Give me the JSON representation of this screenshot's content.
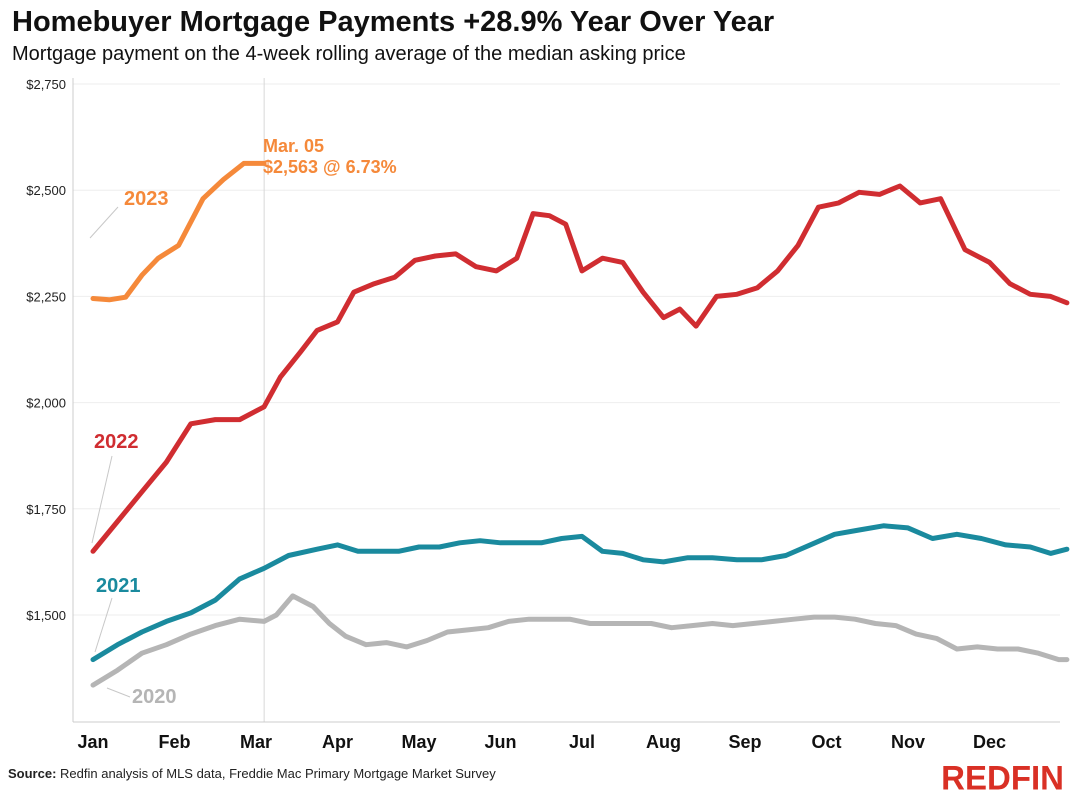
{
  "title": "Homebuyer Mortgage Payments +28.9% Year Over Year",
  "subtitle": "Mortgage payment on the 4-week rolling average of the median asking price",
  "source_label": "Source:",
  "source_text": " Redfin analysis of MLS data, Freddie Mac Primary Mortgage Market Survey",
  "logo": "REDFIN",
  "annotation": {
    "line1": "Mar. 05",
    "line2": "$2,563 @ 6.73%"
  },
  "colors": {
    "2023": "#f5893a",
    "2022": "#d02d31",
    "2021": "#1a8a9e",
    "2020": "#b5b5b5"
  },
  "chart_data": {
    "type": "line",
    "xlabel": "",
    "ylabel": "",
    "ylim": [
      1270,
      2750
    ],
    "xlim": [
      0,
      12.3
    ],
    "yticks": [
      1500,
      1750,
      2000,
      2250,
      2500,
      2750
    ],
    "ytick_labels": [
      "$1,500",
      "$1,750",
      "$2,000",
      "$2,250",
      "$2,500",
      "$2,750"
    ],
    "month_labels": [
      "Jan",
      "Feb",
      "Mar",
      "Apr",
      "May",
      "Jun",
      "Jul",
      "Aug",
      "Sep",
      "Oct",
      "Nov",
      "Dec"
    ],
    "reference_line_x": 2.1,
    "grid": "horizontal",
    "series": [
      {
        "name": "2023",
        "x": [
          0.0,
          0.2,
          0.4,
          0.6,
          0.8,
          1.05,
          1.35,
          1.6,
          1.85,
          2.1
        ],
        "y": [
          2245,
          2242,
          2248,
          2300,
          2340,
          2370,
          2480,
          2525,
          2563,
          2563
        ]
      },
      {
        "name": "2022",
        "x": [
          0.0,
          0.3,
          0.6,
          0.9,
          1.2,
          1.5,
          1.8,
          2.1,
          2.3,
          2.55,
          2.75,
          3.0,
          3.2,
          3.45,
          3.7,
          3.95,
          4.2,
          4.45,
          4.7,
          4.95,
          5.2,
          5.4,
          5.6,
          5.8,
          6.0,
          6.25,
          6.5,
          6.75,
          7.0,
          7.2,
          7.4,
          7.65,
          7.9,
          8.15,
          8.4,
          8.65,
          8.9,
          9.15,
          9.4,
          9.65,
          9.9,
          10.15,
          10.4,
          10.7,
          11.0,
          11.25,
          11.5,
          11.75,
          11.95
        ],
        "y": [
          1650,
          1720,
          1790,
          1860,
          1950,
          1960,
          1960,
          1990,
          2060,
          2120,
          2170,
          2190,
          2260,
          2280,
          2295,
          2335,
          2345,
          2350,
          2320,
          2310,
          2340,
          2445,
          2440,
          2420,
          2310,
          2340,
          2330,
          2260,
          2200,
          2220,
          2180,
          2250,
          2255,
          2270,
          2310,
          2370,
          2460,
          2470,
          2495,
          2490,
          2510,
          2470,
          2480,
          2360,
          2330,
          2280,
          2255,
          2250,
          2235
        ]
      },
      {
        "name": "2021",
        "x": [
          0.0,
          0.3,
          0.6,
          0.9,
          1.2,
          1.5,
          1.8,
          2.1,
          2.4,
          2.75,
          3.0,
          3.25,
          3.5,
          3.75,
          4.0,
          4.25,
          4.5,
          4.75,
          5.0,
          5.25,
          5.5,
          5.75,
          6.0,
          6.25,
          6.5,
          6.75,
          7.0,
          7.3,
          7.6,
          7.9,
          8.2,
          8.5,
          8.8,
          9.1,
          9.4,
          9.7,
          10.0,
          10.3,
          10.6,
          10.9,
          11.2,
          11.5,
          11.75,
          11.95
        ],
        "y": [
          1395,
          1430,
          1460,
          1485,
          1505,
          1535,
          1585,
          1610,
          1640,
          1655,
          1665,
          1650,
          1650,
          1650,
          1660,
          1660,
          1670,
          1675,
          1670,
          1670,
          1670,
          1680,
          1685,
          1650,
          1645,
          1630,
          1625,
          1635,
          1635,
          1630,
          1630,
          1640,
          1665,
          1690,
          1700,
          1710,
          1705,
          1680,
          1690,
          1680,
          1665,
          1660,
          1645,
          1655
        ]
      },
      {
        "name": "2020",
        "x": [
          0.0,
          0.3,
          0.6,
          0.9,
          1.2,
          1.5,
          1.8,
          2.1,
          2.25,
          2.45,
          2.7,
          2.9,
          3.1,
          3.35,
          3.6,
          3.85,
          4.1,
          4.35,
          4.6,
          4.85,
          5.1,
          5.35,
          5.6,
          5.85,
          6.1,
          6.35,
          6.6,
          6.85,
          7.1,
          7.35,
          7.6,
          7.85,
          8.1,
          8.35,
          8.6,
          8.85,
          9.1,
          9.35,
          9.6,
          9.85,
          10.1,
          10.35,
          10.6,
          10.85,
          11.1,
          11.35,
          11.6,
          11.85,
          11.95
        ],
        "y": [
          1335,
          1370,
          1410,
          1430,
          1455,
          1475,
          1490,
          1485,
          1500,
          1545,
          1520,
          1480,
          1450,
          1430,
          1435,
          1425,
          1440,
          1460,
          1465,
          1470,
          1485,
          1490,
          1490,
          1490,
          1480,
          1480,
          1480,
          1480,
          1470,
          1475,
          1480,
          1475,
          1480,
          1485,
          1490,
          1495,
          1495,
          1490,
          1480,
          1475,
          1455,
          1445,
          1420,
          1425,
          1420,
          1420,
          1410,
          1395,
          1395
        ]
      }
    ],
    "series_labels": [
      "2023",
      "2022",
      "2021",
      "2020"
    ]
  }
}
